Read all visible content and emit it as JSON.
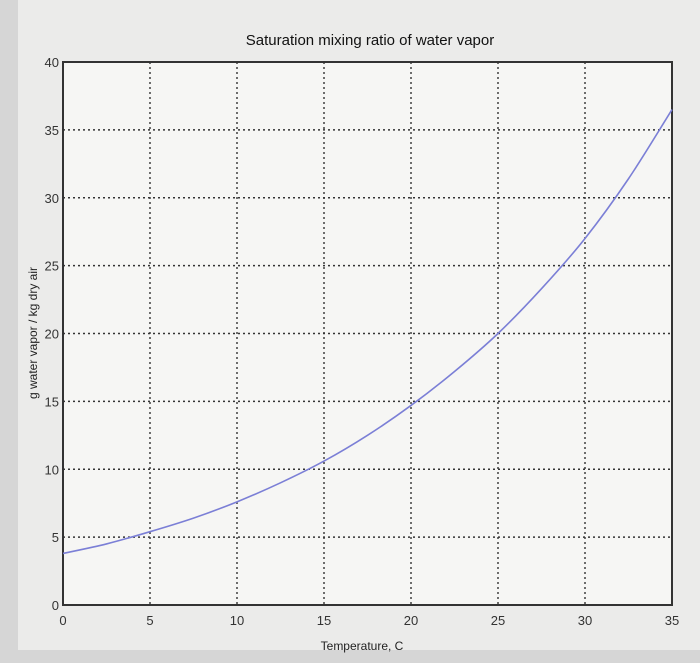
{
  "chart_data": {
    "type": "line",
    "title": "Saturation mixing ratio of water vapor",
    "xlabel": "Temperature, C",
    "ylabel": "g water vapor / kg dry air",
    "xlim": [
      0,
      35
    ],
    "ylim": [
      0,
      40
    ],
    "xticks": [
      "0",
      "5",
      "10",
      "15",
      "20",
      "25",
      "30",
      "35"
    ],
    "yticks": [
      "0",
      "5",
      "10",
      "15",
      "20",
      "25",
      "30",
      "35",
      "40"
    ],
    "grid": true,
    "series": [
      {
        "name": "saturation mixing ratio",
        "color": "#7b7fd6",
        "x": [
          0,
          2.5,
          5,
          7.5,
          10,
          12.5,
          15,
          17.5,
          20,
          22.5,
          25,
          27.5,
          30,
          32.5,
          35
        ],
        "y": [
          3.8,
          4.5,
          5.4,
          6.4,
          7.6,
          9.0,
          10.6,
          12.5,
          14.7,
          17.2,
          20.0,
          23.3,
          27.0,
          31.4,
          36.5
        ]
      }
    ]
  }
}
